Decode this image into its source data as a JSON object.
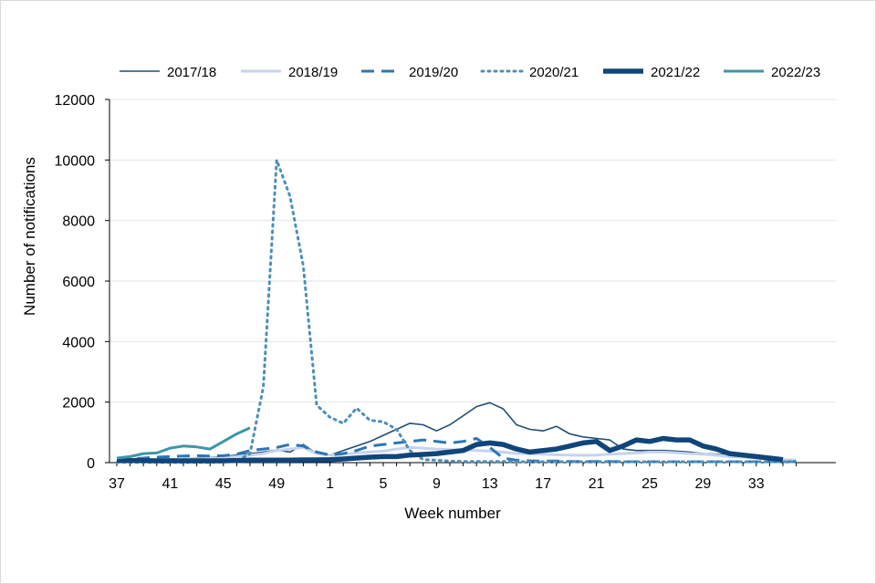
{
  "chart_data": {
    "type": "line",
    "xlabel": "Week number",
    "ylabel": "Number  of notifications",
    "ylim": [
      0,
      12000
    ],
    "yticks": [
      "0",
      "2000",
      "4000",
      "6000",
      "8000",
      "10000",
      "12000"
    ],
    "grid": "horizontal",
    "legend_position": "top",
    "week_order": [
      37,
      38,
      39,
      40,
      41,
      42,
      43,
      44,
      45,
      46,
      47,
      48,
      49,
      50,
      51,
      52,
      1,
      2,
      3,
      4,
      5,
      6,
      7,
      8,
      9,
      10,
      11,
      12,
      13,
      14,
      15,
      16,
      17,
      18,
      19,
      20,
      21,
      22,
      23,
      24,
      25,
      26,
      27,
      28,
      29,
      30,
      31,
      32,
      33,
      34,
      35,
      36
    ],
    "xtick_labels": [
      "37",
      "41",
      "45",
      "49",
      "1",
      "5",
      "9",
      "13",
      "17",
      "21",
      "25",
      "29",
      "33"
    ],
    "series": [
      {
        "name": "2017/18",
        "color": "#1f4e79",
        "width": 1.6,
        "dash": "",
        "values": [
          80,
          90,
          100,
          110,
          120,
          130,
          150,
          170,
          200,
          250,
          300,
          350,
          420,
          350,
          600,
          300,
          250,
          400,
          550,
          700,
          900,
          1100,
          1300,
          1250,
          1050,
          1250,
          1550,
          1850,
          1980,
          1780,
          1250,
          1100,
          1050,
          1200,
          950,
          850,
          800,
          750,
          450,
          400,
          400,
          400,
          380,
          350,
          300,
          280,
          250,
          200,
          150,
          100,
          80,
          60
        ]
      },
      {
        "name": "2018/19",
        "color": "#c5d3ec",
        "width": 3,
        "dash": "",
        "values": [
          60,
          70,
          80,
          90,
          100,
          110,
          120,
          140,
          160,
          200,
          250,
          300,
          400,
          450,
          500,
          300,
          250,
          280,
          320,
          350,
          380,
          450,
          500,
          480,
          450,
          430,
          420,
          400,
          380,
          350,
          300,
          300,
          280,
          260,
          250,
          240,
          250,
          280,
          300,
          320,
          350,
          350,
          330,
          300,
          280,
          250,
          200,
          180,
          150,
          120,
          100,
          80
        ]
      },
      {
        "name": "2019/20",
        "color": "#2e75b6",
        "width": 3,
        "dash": "14,8",
        "values": [
          100,
          120,
          150,
          180,
          200,
          220,
          230,
          220,
          230,
          280,
          400,
          450,
          500,
          600,
          550,
          350,
          250,
          300,
          400,
          550,
          600,
          650,
          700,
          750,
          700,
          650,
          700,
          800,
          500,
          150,
          80,
          60,
          50,
          50,
          40,
          40,
          40,
          40,
          30,
          30,
          30,
          30,
          30,
          30,
          30,
          30,
          30,
          30,
          30,
          30,
          30,
          30
        ]
      },
      {
        "name": "2020/21",
        "color": "#4a90b8",
        "width": 3,
        "dash": "2,5",
        "values": [
          10,
          10,
          10,
          10,
          10,
          10,
          10,
          10,
          20,
          50,
          300,
          2500,
          10000,
          8800,
          6500,
          1900,
          1500,
          1300,
          1800,
          1400,
          1350,
          1100,
          400,
          100,
          80,
          50,
          40,
          40,
          40,
          40,
          30,
          30,
          30,
          30,
          30,
          30,
          30,
          30,
          30,
          30,
          30,
          30,
          30,
          30,
          30,
          30,
          30,
          30,
          30,
          30,
          30,
          30
        ]
      },
      {
        "name": "2021/22",
        "color": "#10457a",
        "width": 5.5,
        "dash": "",
        "values": [
          80,
          70,
          70,
          60,
          60,
          60,
          60,
          60,
          60,
          70,
          80,
          80,
          80,
          80,
          90,
          90,
          100,
          120,
          150,
          180,
          200,
          200,
          250,
          270,
          300,
          350,
          400,
          600,
          650,
          600,
          450,
          350,
          400,
          450,
          550,
          650,
          700,
          400,
          550,
          750,
          700,
          800,
          750,
          750,
          550,
          450,
          300,
          250,
          200,
          150,
          100,
          null
        ]
      },
      {
        "name": "2022/23",
        "color": "#3d96a9",
        "width": 3,
        "dash": "",
        "values": [
          150,
          200,
          300,
          320,
          480,
          550,
          520,
          450,
          700,
          950,
          1150,
          null,
          null,
          null,
          null,
          null,
          null,
          null,
          null,
          null,
          null,
          null,
          null,
          null,
          null,
          null,
          null,
          null,
          null,
          null,
          null,
          null,
          null,
          null,
          null,
          null,
          null,
          null,
          null,
          null,
          null,
          null,
          null,
          null,
          null,
          null,
          null,
          null,
          null,
          null,
          null,
          null
        ]
      }
    ]
  }
}
